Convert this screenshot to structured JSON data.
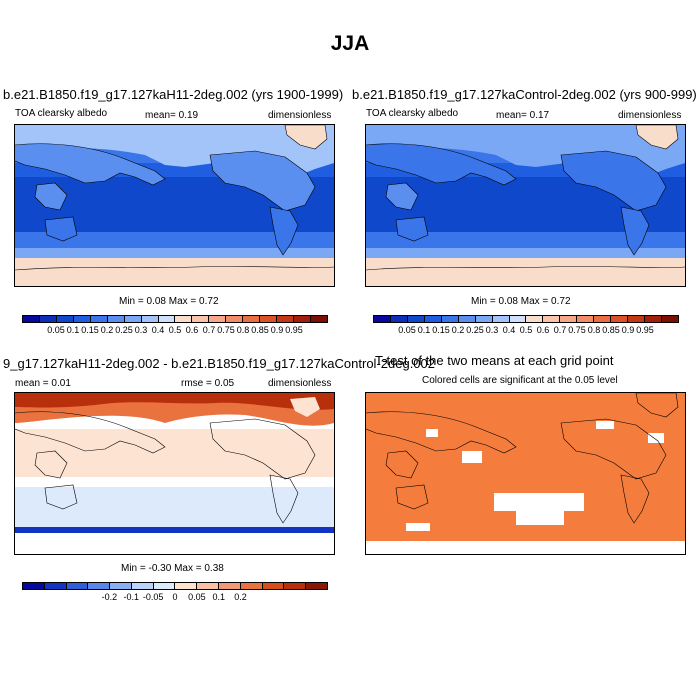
{
  "figure": {
    "title": "JJA"
  },
  "panels": {
    "p1": {
      "title": "b.e21.B1850.f19_g17.127kaH11-2deg.002 (yrs 1900-1999)",
      "left": "TOA clearsky albedo",
      "mean": "mean=  0.19",
      "right": "dimensionless",
      "minmax": "Min =  0.08 Max =  0.72"
    },
    "p2": {
      "title": "b.e21.B1850.f19_g17.127kaControl-2deg.002 (yrs 900-999)",
      "left": "TOA clearsky albedo",
      "mean": "mean=  0.17",
      "right": "dimensionless",
      "minmax": "Min =  0.08 Max =  0.72"
    },
    "p3": {
      "title": "9_g17.127kaH11-2deg.002 - b.e21.B1850.f19_g17.127kaControl-2deg.002",
      "left": "mean =  0.01",
      "mean": "rmse =  0.05",
      "right": "dimensionless",
      "minmax": "Min =  -0.30 Max =  0.38"
    },
    "p4": {
      "title": "T-test of the two means at each grid point",
      "subtitle": "Colored cells are significant at the 0.05 level"
    }
  },
  "colorbars": {
    "abs": {
      "colors": [
        "#08089e",
        "#0b2fb8",
        "#1048cc",
        "#1f5ee0",
        "#3a75ea",
        "#5a8ff0",
        "#7aa8f5",
        "#a2c4f9",
        "#cfe0fb",
        "#f7ddca",
        "#f8c4aa",
        "#f6a888",
        "#f08c66",
        "#e96e44",
        "#dd5128",
        "#c23716",
        "#a0200b",
        "#7a1004"
      ],
      "labels": [
        "0.05",
        "0.1",
        "0.15",
        "0.2",
        "0.25",
        "0.3",
        "0.4",
        "0.5",
        "0.6",
        "0.7",
        "0.75",
        "0.8",
        "0.85",
        "0.9",
        "0.95"
      ]
    },
    "diff": {
      "colors": [
        "#08089e",
        "#1234c0",
        "#2f5ed8",
        "#5a86ea",
        "#8ab0f4",
        "#bcd3fa",
        "#ddeafc",
        "#fde3d2",
        "#f8c2a6",
        "#f29a76",
        "#e9723f",
        "#d84d1c",
        "#b82f0c",
        "#8a1606"
      ],
      "labels": [
        "-0.2",
        "-0.1",
        "-0.05",
        "0",
        "0.05",
        "0.1",
        "0.2"
      ]
    }
  },
  "colors": {
    "ocean_albedo": "#1048cc",
    "land_albedo": "#3a75ea",
    "ice_albedo": "#f7ddca",
    "diff_positive": "#fde3d2",
    "diff_negative": "#ddeafc",
    "ttest_significant": "#f47c3c"
  }
}
